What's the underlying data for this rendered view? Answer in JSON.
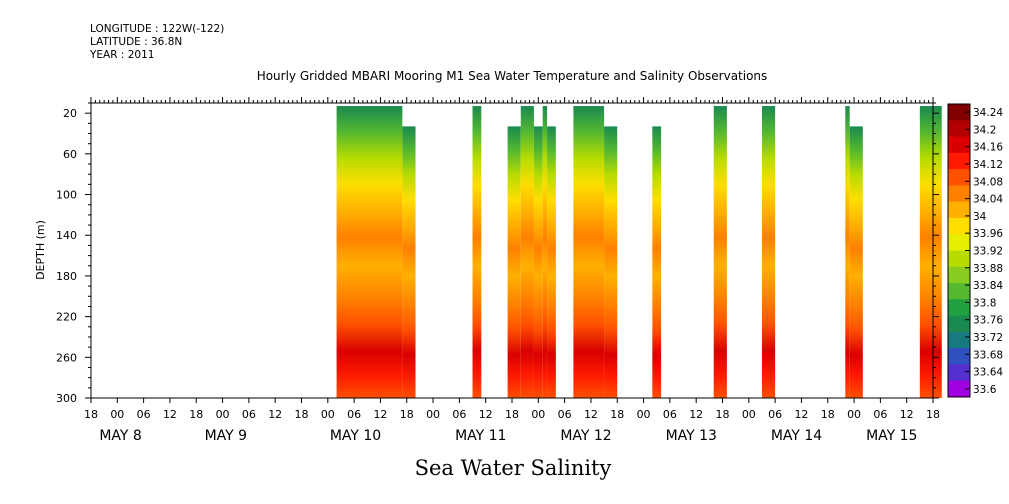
{
  "header": {
    "longitude": "LONGITUDE : 122W(-122)",
    "latitude": "LATITUDE : 36.8N",
    "year": "YEAR : 2011"
  },
  "chart_data": {
    "type": "heatmap",
    "title": "Hourly Gridded MBARI Mooring M1 Sea Water Temperature and Salinity Observations",
    "variable_title": "Sea Water Salinity",
    "ylabel": "DEPTH (m)",
    "ylim": [
      300,
      10
    ],
    "y_ticks": [
      20,
      60,
      100,
      140,
      180,
      220,
      260,
      300
    ],
    "x_hour_ticks": [
      "18",
      "00",
      "06",
      "12",
      "18",
      "00",
      "06",
      "12",
      "18",
      "00",
      "06",
      "12",
      "18",
      "00",
      "06",
      "12",
      "18",
      "00",
      "06",
      "12",
      "18",
      "00",
      "06",
      "12",
      "18",
      "00",
      "06",
      "12",
      "18",
      "00",
      "06",
      "12",
      "18"
    ],
    "x_day_labels": [
      "MAY  8",
      "MAY  9",
      "MAY 10",
      "MAY 11",
      "MAY 12",
      "MAY 13",
      "MAY 14",
      "MAY 15"
    ],
    "colorbar": {
      "labels": [
        "34.24",
        "34.2",
        "34.16",
        "34.12",
        "34.08",
        "34.04",
        "34",
        "33.96",
        "33.92",
        "33.88",
        "33.84",
        "33.8",
        "33.76",
        "33.72",
        "33.68",
        "33.64",
        "33.6"
      ],
      "colors": [
        "#800000",
        "#b30000",
        "#d80000",
        "#ff1a00",
        "#ff5000",
        "#ff8000",
        "#ffb000",
        "#ffdd00",
        "#e8ee00",
        "#b8dc00",
        "#88cc20",
        "#55b830",
        "#20a040",
        "#1a8a50",
        "#187a80",
        "#3050c0",
        "#5530d0",
        "#a000e0"
      ]
    },
    "segments": [
      {
        "start_hour": 56,
        "end_hour": 71,
        "top_depth": 20
      },
      {
        "start_hour": 71,
        "end_hour": 74,
        "top_depth": 40
      },
      {
        "start_hour": 87,
        "end_hour": 89,
        "top_depth": 20
      },
      {
        "start_hour": 95,
        "end_hour": 98,
        "top_depth": 40
      },
      {
        "start_hour": 98,
        "end_hour": 101,
        "top_depth": 20
      },
      {
        "start_hour": 101,
        "end_hour": 103,
        "top_depth": 40
      },
      {
        "start_hour": 103,
        "end_hour": 104,
        "top_depth": 20
      },
      {
        "start_hour": 104,
        "end_hour": 106,
        "top_depth": 40
      },
      {
        "start_hour": 110,
        "end_hour": 117,
        "top_depth": 20
      },
      {
        "start_hour": 117,
        "end_hour": 120,
        "top_depth": 40
      },
      {
        "start_hour": 128,
        "end_hour": 130,
        "top_depth": 40
      },
      {
        "start_hour": 142,
        "end_hour": 145,
        "top_depth": 20
      },
      {
        "start_hour": 153,
        "end_hour": 156,
        "top_depth": 20
      },
      {
        "start_hour": 172,
        "end_hour": 173,
        "top_depth": 20
      },
      {
        "start_hour": 173,
        "end_hour": 176,
        "top_depth": 40
      },
      {
        "start_hour": 189,
        "end_hour": 194,
        "top_depth": 20
      }
    ]
  }
}
